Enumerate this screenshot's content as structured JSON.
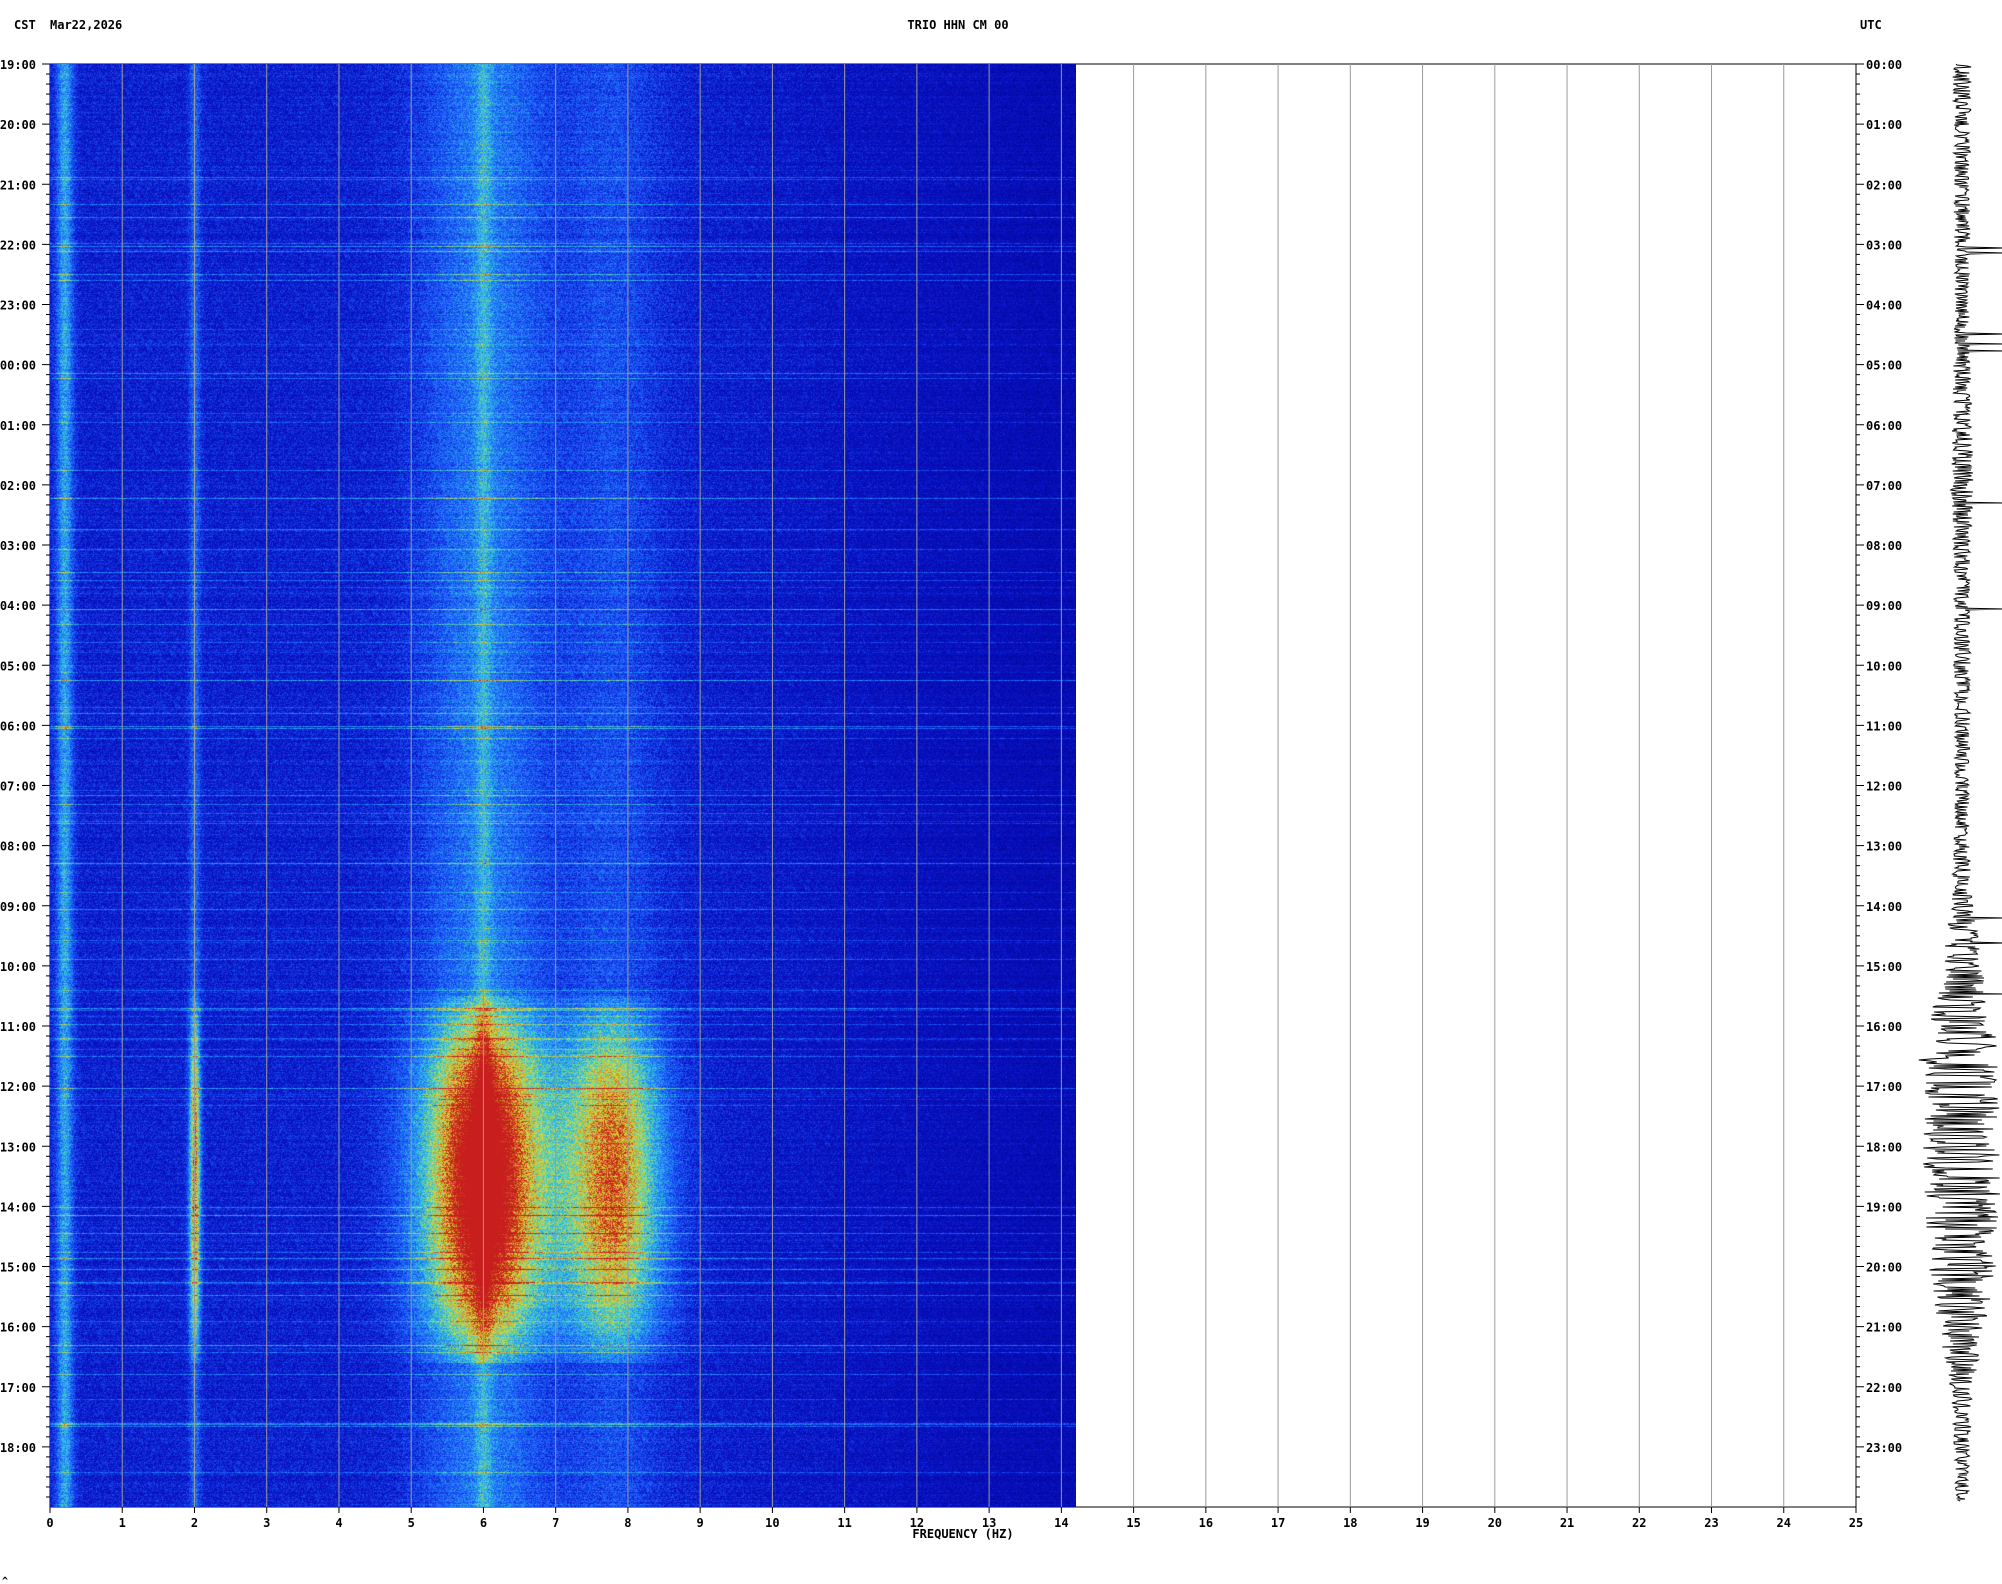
{
  "header": {
    "left_timezone": "CST",
    "date": "Mar22,2026",
    "station": "TRIO HHN CM 00",
    "right_timezone": "UTC"
  },
  "footer_mark": "^",
  "chart_data": {
    "type": "heatmap",
    "title": "TRIO HHN CM 00",
    "xlabel": "FREQUENCY (HZ)",
    "x_ticks": [
      "0",
      "1",
      "2",
      "3",
      "4",
      "5",
      "6",
      "7",
      "8",
      "9",
      "10",
      "11",
      "12",
      "13",
      "14",
      "15",
      "16",
      "17",
      "18",
      "19",
      "20",
      "21",
      "22",
      "23",
      "24",
      "25"
    ],
    "xlim": [
      0,
      25
    ],
    "data_xlim": [
      0,
      14.2
    ],
    "left_ticks": [
      "19:00",
      "20:00",
      "21:00",
      "22:00",
      "23:00",
      "00:00",
      "01:00",
      "02:00",
      "03:00",
      "04:00",
      "05:00",
      "06:00",
      "07:00",
      "08:00",
      "09:00",
      "10:00",
      "11:00",
      "12:00",
      "13:00",
      "14:00",
      "15:00",
      "16:00",
      "17:00",
      "18:00"
    ],
    "right_ticks": [
      "00:00",
      "01:00",
      "02:00",
      "03:00",
      "04:00",
      "05:00",
      "06:00",
      "07:00",
      "08:00",
      "09:00",
      "10:00",
      "11:00",
      "12:00",
      "13:00",
      "14:00",
      "15:00",
      "16:00",
      "17:00",
      "18:00",
      "19:00",
      "20:00",
      "21:00",
      "22:00",
      "23:00"
    ],
    "hours_span": 24,
    "colors": {
      "background": "#00008b",
      "low": "#0a14c8",
      "mid": "#1e64ff",
      "cyan": "#32c8dc",
      "yellow": "#dcdc32",
      "red": "#c81e1e",
      "gridline": "#9a9a9a",
      "waveform": "#000000"
    },
    "energy_bands_hz": [
      0.2,
      2.0,
      6.0,
      7.8
    ],
    "high_activity_hours": [
      15.5,
      21.6
    ],
    "waveform_amplitude_profile": [
      [
        0,
        0.25
      ],
      [
        1,
        0.22
      ],
      [
        2,
        0.2
      ],
      [
        3,
        0.22
      ],
      [
        4,
        0.18
      ],
      [
        5,
        0.22
      ],
      [
        6,
        0.25
      ],
      [
        7,
        0.3
      ],
      [
        8,
        0.22
      ],
      [
        9,
        0.2
      ],
      [
        10,
        0.22
      ],
      [
        11,
        0.2
      ],
      [
        12,
        0.18
      ],
      [
        13,
        0.2
      ],
      [
        14,
        0.3
      ],
      [
        15,
        0.5
      ],
      [
        16,
        0.85
      ],
      [
        17,
        0.95
      ],
      [
        18,
        1.0
      ],
      [
        19,
        0.95
      ],
      [
        20,
        0.85
      ],
      [
        21,
        0.6
      ],
      [
        22,
        0.3
      ],
      [
        23,
        0.2
      ],
      [
        24,
        0.15
      ]
    ]
  }
}
